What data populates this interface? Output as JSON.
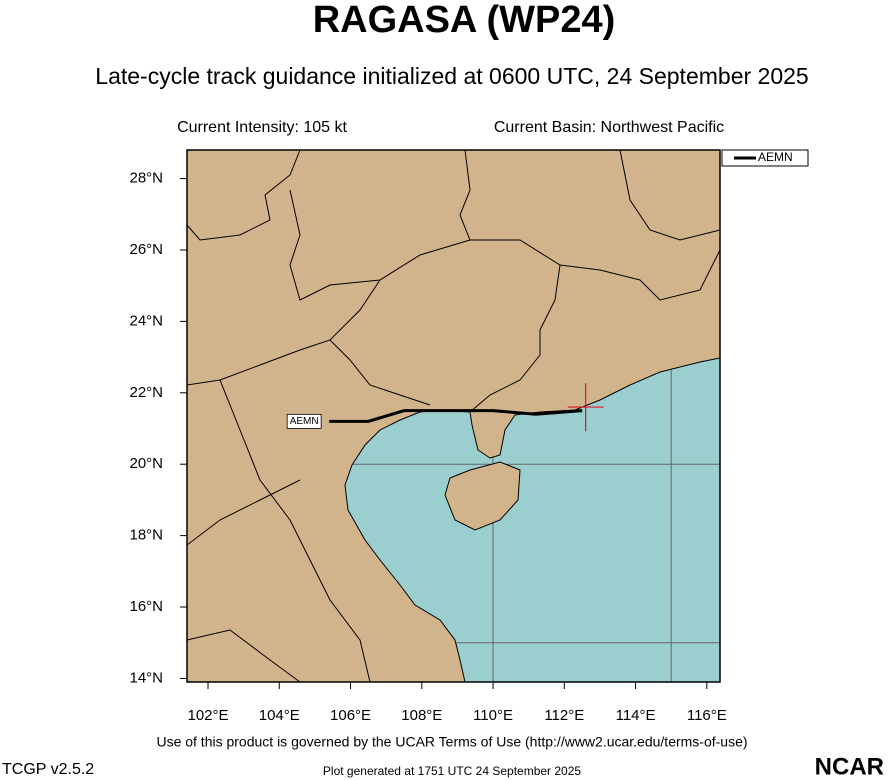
{
  "chart_data": {
    "type": "track",
    "title": "RAGASA (WP24)",
    "subtitle": "Late-cycle track guidance initialized at 0600 UTC, 24 September 2025",
    "intensity_label": "Current Intensity: 105 kt",
    "basin_label": "Current Basin: Northwest Pacific",
    "xlim": [
      101.41,
      116.37
    ],
    "ylim": [
      13.9,
      28.8
    ],
    "xticks": [
      {
        "value": 102,
        "label": "102°E"
      },
      {
        "value": 104,
        "label": "104°E"
      },
      {
        "value": 106,
        "label": "106°E"
      },
      {
        "value": 108,
        "label": "108°E"
      },
      {
        "value": 110,
        "label": "110°E"
      },
      {
        "value": 112,
        "label": "112°E"
      },
      {
        "value": 114,
        "label": "114°E"
      },
      {
        "value": 116,
        "label": "116°E"
      }
    ],
    "yticks": [
      {
        "value": 14,
        "label": "14°N"
      },
      {
        "value": 16,
        "label": "16°N"
      },
      {
        "value": 18,
        "label": "18°N"
      },
      {
        "value": 20,
        "label": "20°N"
      },
      {
        "value": 22,
        "label": "22°N"
      },
      {
        "value": 24,
        "label": "24°N"
      },
      {
        "value": 26,
        "label": "26°N"
      },
      {
        "value": 28,
        "label": "28°N"
      }
    ],
    "grid_lon": [
      105,
      110,
      115
    ],
    "grid_lat": [
      15,
      20,
      25
    ],
    "land_color": "#d2b48c",
    "sea_color": "#9bcfcf",
    "current_position": {
      "x": 112.6,
      "y": 21.6,
      "color": "#e0141e"
    },
    "series": [
      {
        "name": "AEMN",
        "color": "#000000",
        "x": [
          112.5,
          111.2,
          110.0,
          108.8,
          107.5,
          106.5,
          105.4
        ],
        "values": [
          21.5,
          21.4,
          21.5,
          21.5,
          21.5,
          21.2,
          21.2
        ]
      }
    ],
    "legend_position": "upper right",
    "footer_terms": "Use of this product is governed by the UCAR Terms of Use (http://www2.ucar.edu/terms-of-use)",
    "version": "TCGP v2.5.2",
    "generated": "Plot generated at 1751 UTC   24 September 2025",
    "logo": "NCAR"
  }
}
